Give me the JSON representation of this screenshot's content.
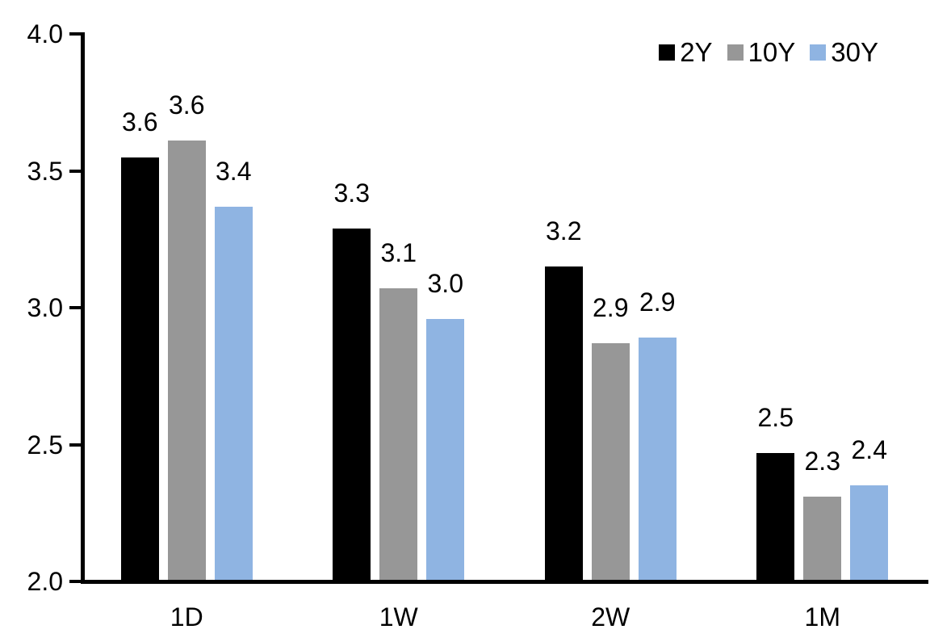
{
  "chart_data": {
    "type": "bar",
    "title": "",
    "categories": [
      "1D",
      "1W",
      "2W",
      "1M"
    ],
    "series": [
      {
        "name": "2Y",
        "color": "#000000",
        "values": [
          3.55,
          3.29,
          3.15,
          2.47
        ],
        "labels": [
          "3.6",
          "3.3",
          "3.2",
          "2.5"
        ]
      },
      {
        "name": "10Y",
        "color": "#979797",
        "values": [
          3.61,
          3.07,
          2.87,
          2.31
        ],
        "labels": [
          "3.6",
          "3.1",
          "2.9",
          "2.3"
        ]
      },
      {
        "name": "30Y",
        "color": "#8FB4E2",
        "values": [
          3.37,
          2.96,
          2.89,
          2.35
        ],
        "labels": [
          "3.4",
          "3.0",
          "2.9",
          "2.4"
        ]
      }
    ],
    "y_axis": {
      "min": 2.0,
      "max": 4.0,
      "step": 0.5,
      "tick_labels": [
        "2.0",
        "2.5",
        "3.0",
        "3.5",
        "4.0"
      ]
    },
    "x_axis": {
      "tick_labels": [
        "1D",
        "1W",
        "2W",
        "1M"
      ]
    },
    "legend": {
      "position": "top-right",
      "entries": [
        "2Y",
        "10Y",
        "30Y"
      ]
    },
    "grid": false,
    "data_labels_shown": true,
    "colors": {
      "axis": "#000000",
      "text": "#000000",
      "background": "#FFFFFF"
    }
  }
}
